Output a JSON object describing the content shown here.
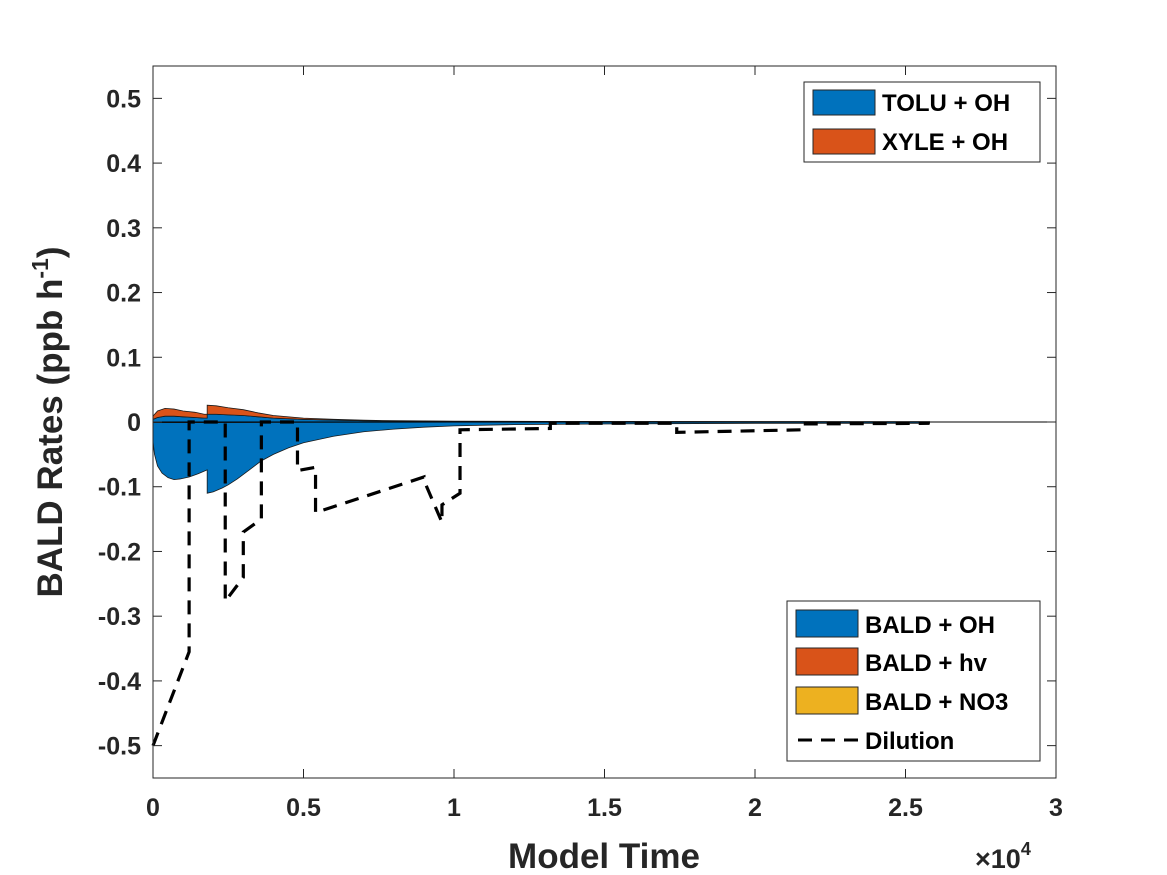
{
  "chart_data": {
    "type": "area",
    "xlabel": "Model Time",
    "ylabel": "BALD Rates (ppb h",
    "ylabel_sup": "-1",
    "ylabel_close": ")",
    "x_exponent_base": "×10",
    "x_exponent_power": "4",
    "xlim": [
      0,
      30000
    ],
    "ylim": [
      -0.55,
      0.55
    ],
    "xticks": [
      0,
      5000,
      10000,
      15000,
      20000,
      25000,
      30000
    ],
    "xtick_labels": [
      "0",
      "0.5",
      "1",
      "1.5",
      "2",
      "2.5",
      "3"
    ],
    "yticks": [
      -0.5,
      -0.4,
      -0.3,
      -0.2,
      -0.1,
      0,
      0.1,
      0.2,
      0.3,
      0.4,
      0.5
    ],
    "ytick_labels": [
      "-0.5",
      "-0.4",
      "-0.3",
      "-0.2",
      "-0.1",
      "0",
      "0.1",
      "0.2",
      "0.3",
      "0.4",
      "0.5"
    ],
    "grid": false,
    "production_legend": {
      "placement": "top-right",
      "entries": [
        {
          "label": "TOLU + OH",
          "color": "#0072BD"
        },
        {
          "label": "XYLE + OH",
          "color": "#D95319"
        }
      ]
    },
    "loss_legend": {
      "placement": "bottom-right",
      "entries": [
        {
          "label": "BALD + OH",
          "color": "#0072BD",
          "kind": "patch"
        },
        {
          "label": "BALD + hv",
          "color": "#D95319",
          "kind": "patch"
        },
        {
          "label": "BALD + NO3",
          "color": "#EDB120",
          "kind": "patch"
        },
        {
          "label": "Dilution",
          "color": "#000000",
          "kind": "dashed-line"
        }
      ]
    },
    "production_series": [
      {
        "name": "TOLU + OH",
        "color": "#0072BD",
        "x": [
          0,
          150,
          400,
          700,
          1000,
          1400,
          1700,
          1800,
          1800,
          2100,
          2500,
          3000,
          3500,
          4000,
          5000,
          6000,
          7000,
          8000,
          10000,
          13000,
          17000,
          21500,
          25800
        ],
        "y": [
          0.004,
          0.007,
          0.009,
          0.009,
          0.008,
          0.007,
          0.006,
          0.006,
          0.012,
          0.012,
          0.011,
          0.01,
          0.008,
          0.006,
          0.004,
          0.003,
          0.002,
          0.0015,
          0.001,
          0.0008,
          0.0006,
          0.0005,
          0.0004
        ]
      },
      {
        "name": "XYLE + OH",
        "color": "#D95319",
        "x": [
          0,
          150,
          400,
          700,
          1000,
          1400,
          1700,
          1800,
          1800,
          2100,
          2500,
          3000,
          3500,
          4000,
          5000,
          6000,
          7000,
          8000,
          10000,
          13000,
          17000,
          21500,
          25800
        ],
        "y": [
          0.005,
          0.01,
          0.012,
          0.011,
          0.009,
          0.008,
          0.006,
          0.006,
          0.014,
          0.013,
          0.011,
          0.009,
          0.006,
          0.004,
          0.002,
          0.0012,
          0.0008,
          0.0005,
          0.0003,
          0.0002,
          0.0001,
          0.0001,
          0.0001
        ]
      }
    ],
    "loss_series": [
      {
        "name": "BALD + OH",
        "color": "#0072BD",
        "x": [
          0,
          50,
          150,
          300,
          500,
          700,
          900,
          1200,
          1500,
          1800,
          1800,
          2000,
          2300,
          2500,
          2800,
          3200,
          3600,
          4000,
          4500,
          5000,
          6000,
          7000,
          8000,
          9000,
          10000,
          12000,
          15000,
          20000,
          25800
        ],
        "y": [
          -0.03,
          -0.05,
          -0.068,
          -0.079,
          -0.086,
          -0.089,
          -0.088,
          -0.085,
          -0.08,
          -0.074,
          -0.11,
          -0.108,
          -0.102,
          -0.097,
          -0.088,
          -0.074,
          -0.06,
          -0.05,
          -0.04,
          -0.032,
          -0.022,
          -0.015,
          -0.011,
          -0.008,
          -0.006,
          -0.004,
          -0.003,
          -0.002,
          -0.002
        ]
      },
      {
        "name": "BALD + hv",
        "color": "#D95319",
        "x": [
          0,
          2000,
          4000,
          10000,
          25800
        ],
        "y": [
          -0.001,
          -0.001,
          -0.0005,
          -0.0002,
          -0.0001
        ]
      },
      {
        "name": "BALD + NO3",
        "color": "#EDB120",
        "x": [
          0,
          5000,
          25800
        ],
        "y": [
          -0.0002,
          -0.0001,
          0
        ]
      }
    ],
    "dilution": {
      "name": "Dilution",
      "color": "#000000",
      "x": [
        0,
        1200,
        1200,
        2400,
        2400,
        3000,
        3000,
        3600,
        3600,
        4800,
        4800,
        5400,
        5400,
        9000,
        9000,
        9600,
        9600,
        10200,
        10200,
        13200,
        13200,
        17400,
        17400,
        21600,
        21600,
        25800
      ],
      "y": [
        -0.5,
        -0.355,
        0,
        0,
        -0.277,
        -0.24,
        -0.17,
        -0.15,
        0,
        0,
        -0.075,
        -0.07,
        -0.14,
        -0.085,
        -0.09,
        -0.155,
        -0.128,
        -0.11,
        -0.012,
        -0.01,
        -0.002,
        -0.002,
        -0.016,
        -0.012,
        -0.003,
        -0.002
      ]
    }
  }
}
